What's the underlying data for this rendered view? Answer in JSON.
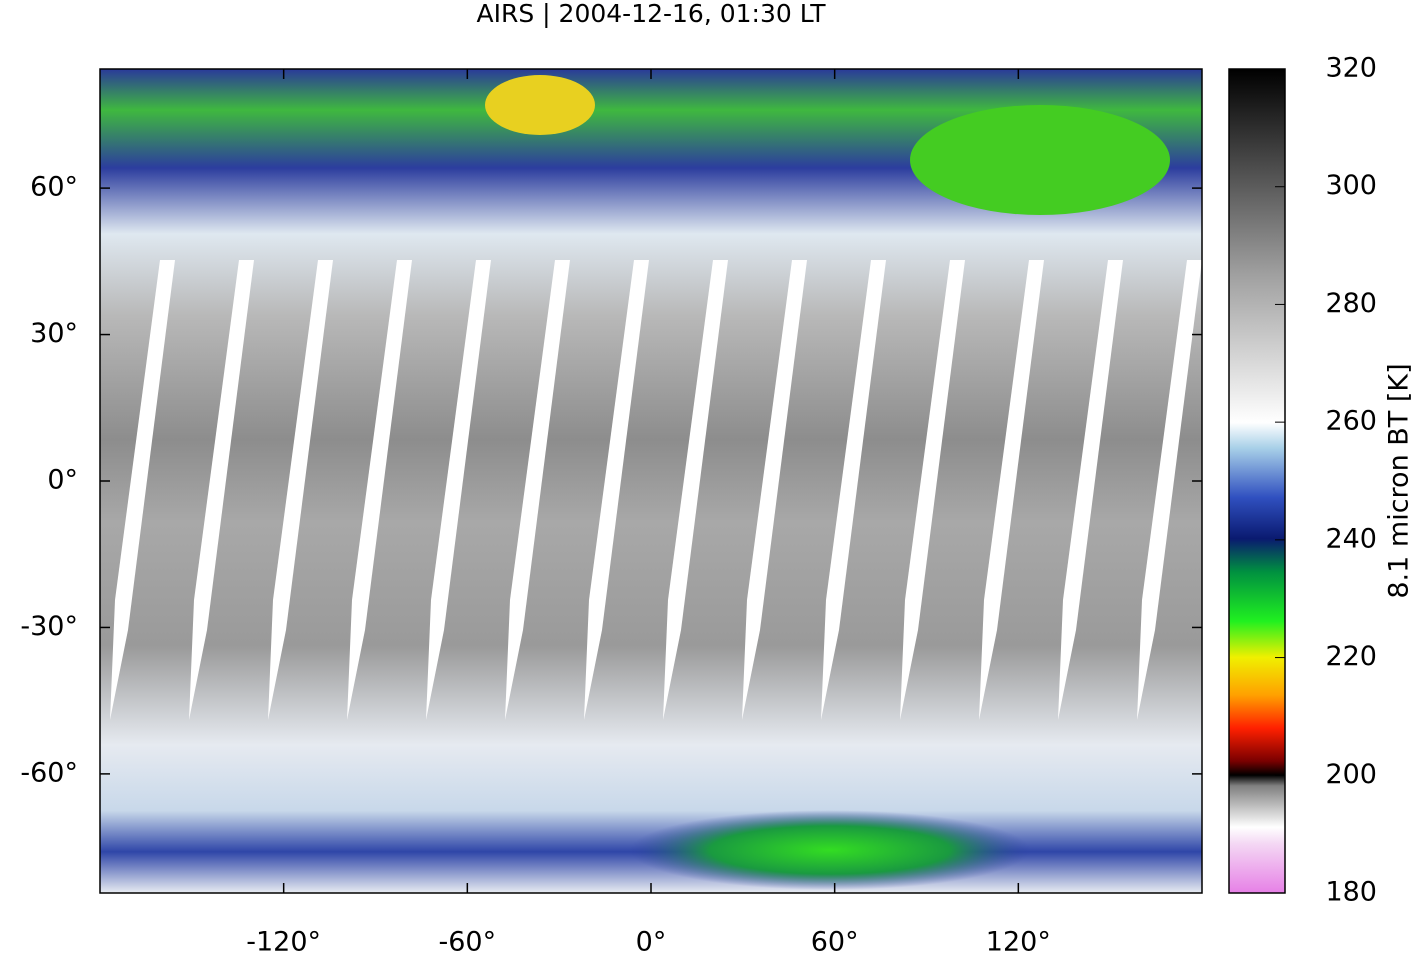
{
  "chart_data": {
    "type": "map",
    "title": "AIRS | 2004-12-16, 01:30 LT",
    "xlim": [
      -180,
      180
    ],
    "ylim": [
      -84.4,
      84.4
    ],
    "xticks": [
      {
        "value": -120,
        "label": "-120°"
      },
      {
        "value": -60,
        "label": "-60°"
      },
      {
        "value": 0,
        "label": "0°"
      },
      {
        "value": 60,
        "label": "60°"
      },
      {
        "value": 120,
        "label": "120°"
      }
    ],
    "yticks": [
      {
        "value": 60,
        "label": "60°"
      },
      {
        "value": 30,
        "label": "30°"
      },
      {
        "value": 0,
        "label": "0°"
      },
      {
        "value": -30,
        "label": "-30°"
      },
      {
        "value": -60,
        "label": "-60°"
      }
    ],
    "colorbar": {
      "label": "8.1 micron BT [K]",
      "lim": [
        180,
        320
      ],
      "ticks": [
        180,
        200,
        220,
        240,
        260,
        280,
        300,
        320
      ]
    }
  }
}
